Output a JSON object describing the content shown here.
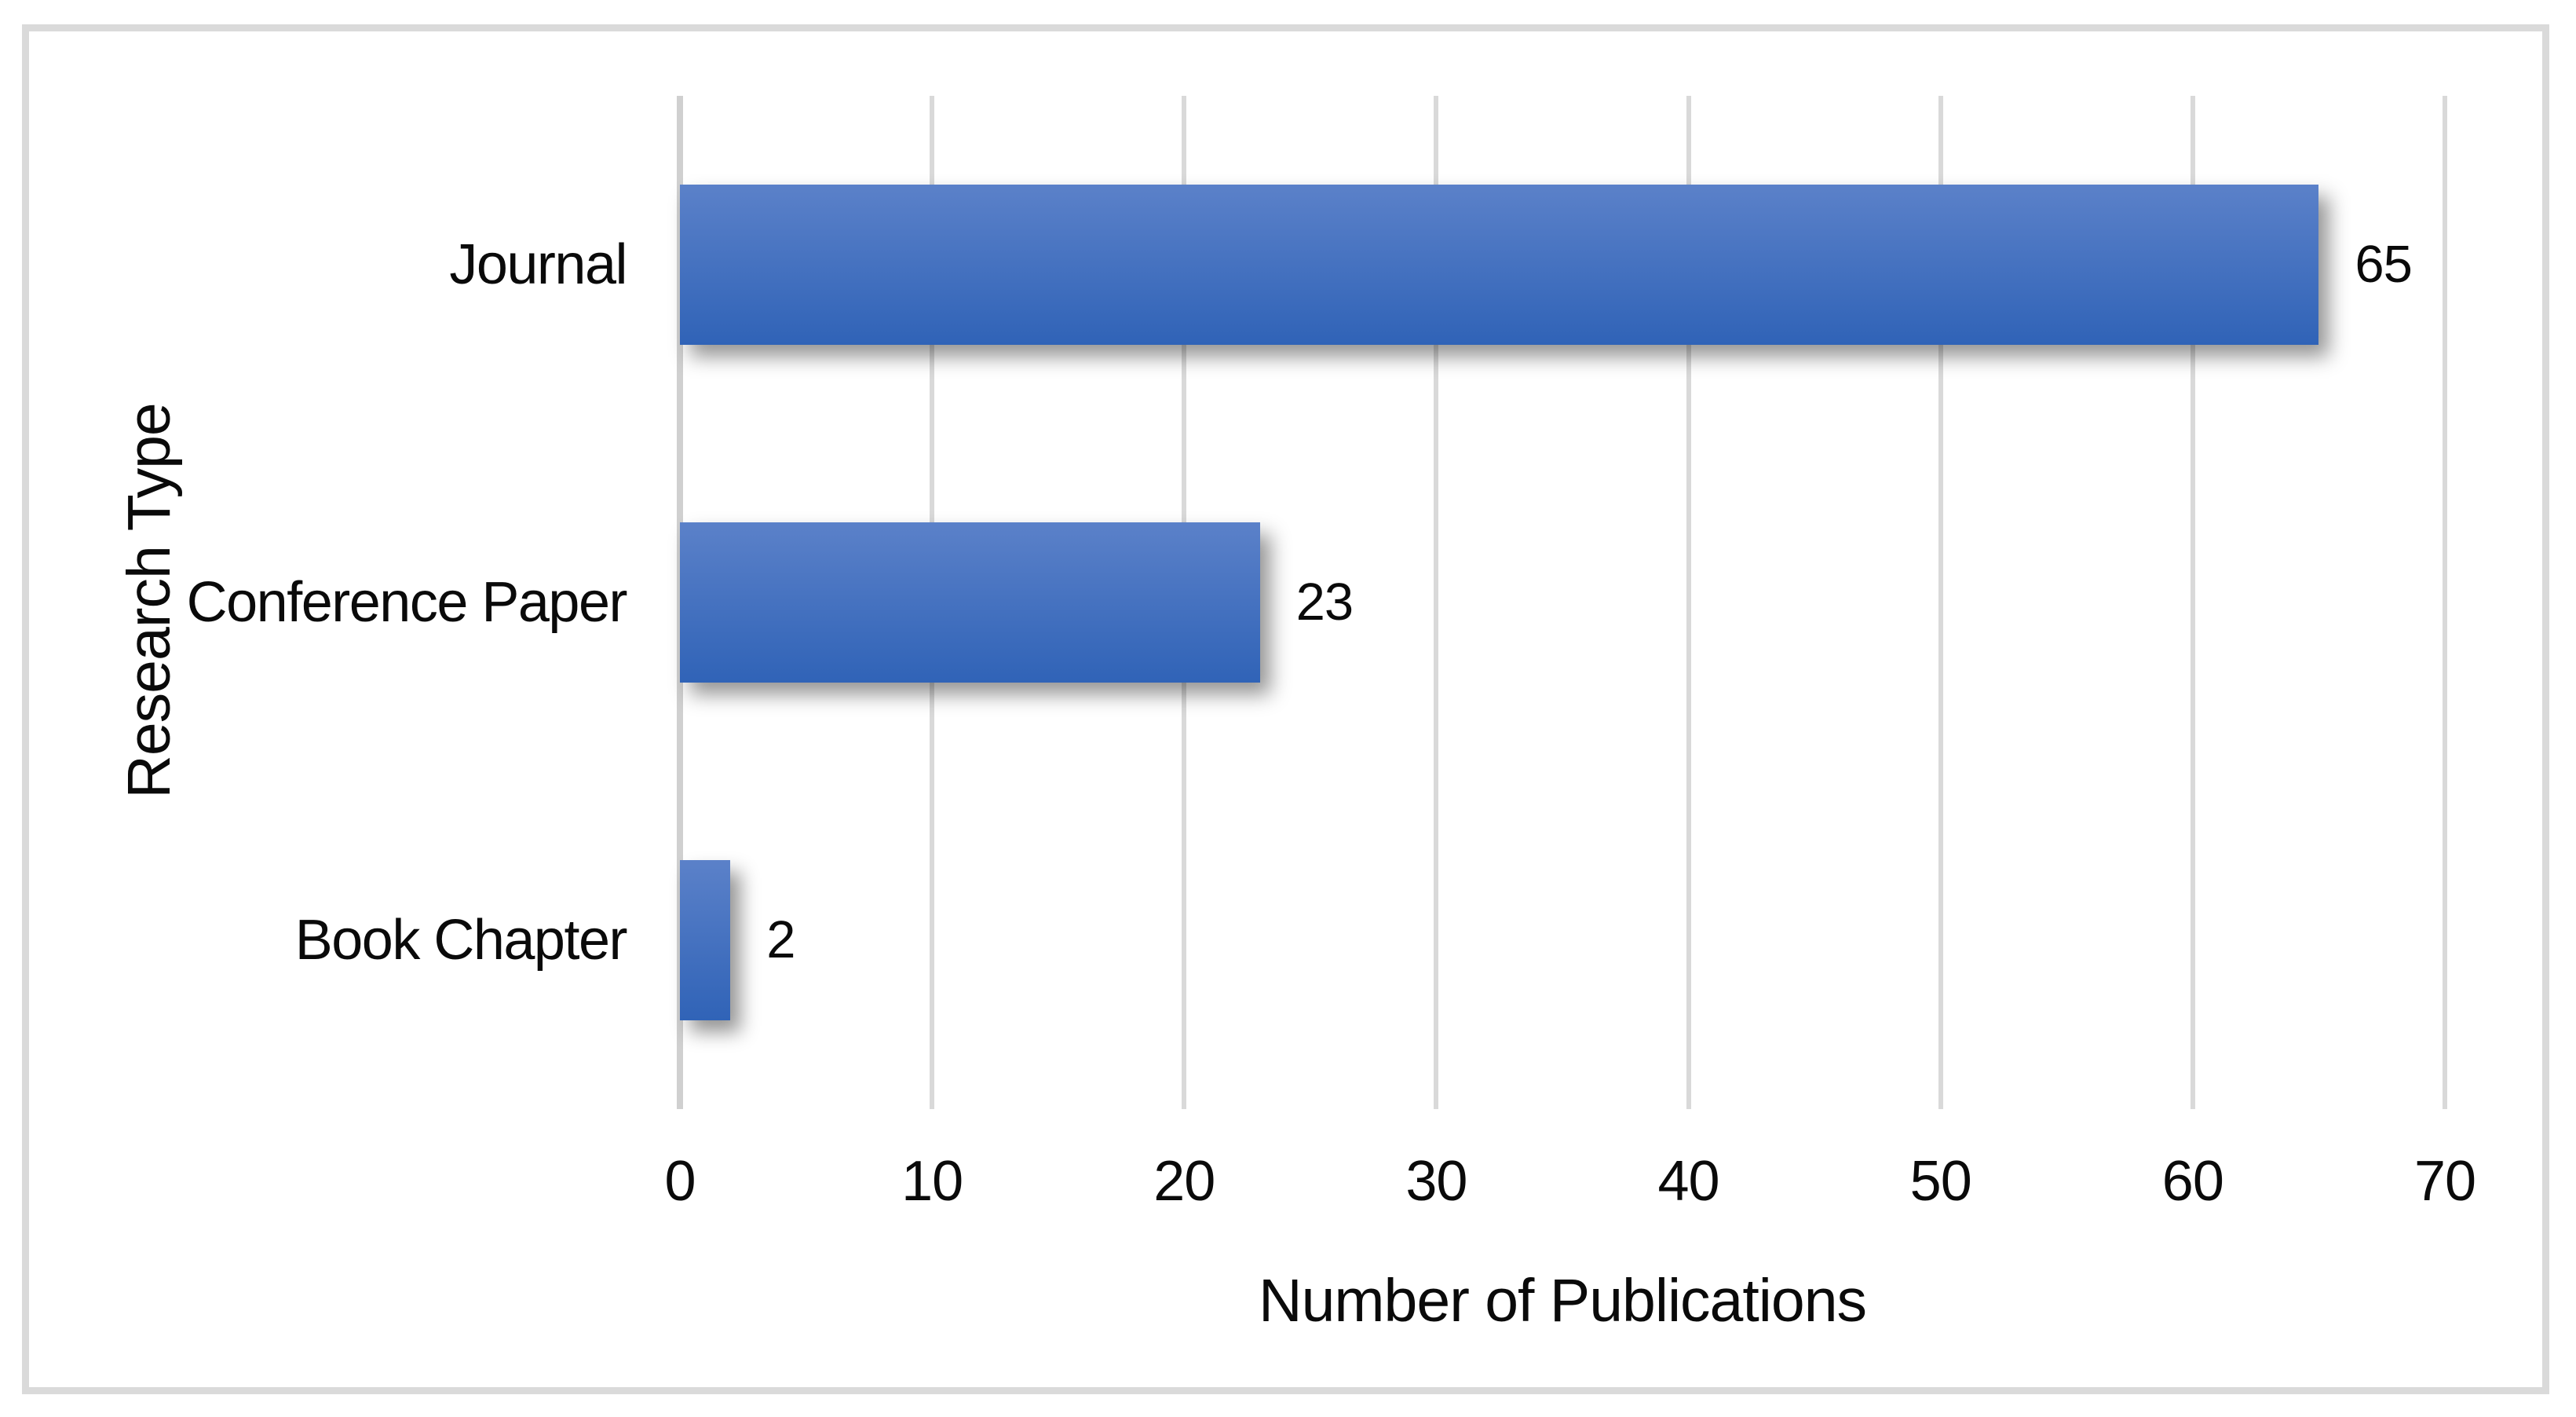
{
  "chart_data": {
    "type": "bar",
    "orientation": "horizontal",
    "title": "",
    "categories": [
      "Journal",
      "Conference Paper",
      "Book Chapter"
    ],
    "values": [
      65,
      23,
      2
    ],
    "data_labels": [
      "65",
      "23",
      "2"
    ],
    "xlabel": "Number of Publications",
    "ylabel": "Research Type",
    "xlim": [
      0,
      70
    ],
    "xticks": [
      0,
      10,
      20,
      30,
      40,
      50,
      60,
      70
    ],
    "grid": "vertical-gridlines-on",
    "legend": "none",
    "colors": {
      "bar_gradient_top": "#5b81c9",
      "bar_gradient_bottom": "#3063b7",
      "gridline": "#d9d9d9",
      "axis_line": "#d0d0d0",
      "frame_border": "#dadada",
      "background": "#ffffff",
      "text": "#0a0a0a"
    }
  }
}
